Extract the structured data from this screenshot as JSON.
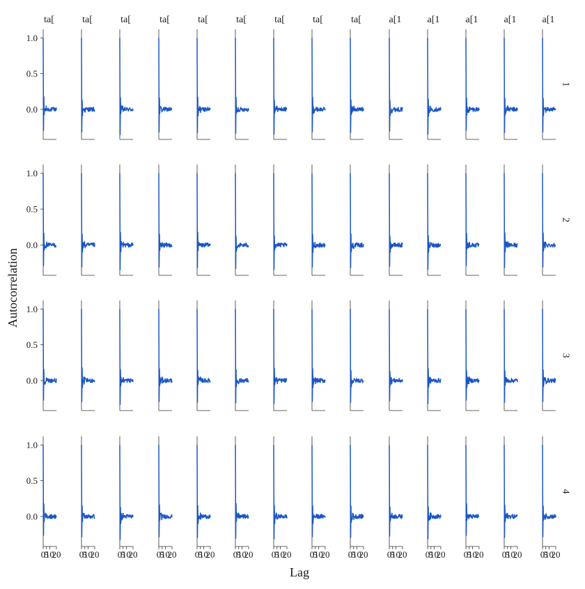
{
  "chart_data": {
    "type": "line",
    "title": "",
    "xlabel": "Lag",
    "ylabel": "Autocorrelation",
    "ylim": [
      -0.42,
      1.12
    ],
    "xlim": [
      0,
      20
    ],
    "y_ticks": [
      0.0,
      0.5,
      1.0
    ],
    "y_tick_labels": [
      "0.0",
      "0.5",
      "1.0"
    ],
    "x_ticks": [
      0,
      5,
      10,
      20
    ],
    "x_tick_labels": [
      "0",
      "5",
      "10",
      "20"
    ],
    "grid": false,
    "line_color": "#1a56c4",
    "column_strip_labels": [
      "ta[",
      "ta[",
      "ta[",
      "ta[",
      "ta[",
      "ta[",
      "ta[",
      "ta[",
      "ta[",
      "a[1",
      "a[1",
      "a[1",
      "a[1",
      "a[1"
    ],
    "row_strip_labels": [
      "1",
      "2",
      "3",
      "4"
    ],
    "acf_min_lag": [
      -0.28,
      -0.3,
      -0.34,
      -0.3,
      -0.31,
      -0.32,
      -0.33,
      -0.3,
      -0.31,
      -0.29,
      -0.33,
      -0.28,
      -0.31,
      -0.3
    ]
  }
}
